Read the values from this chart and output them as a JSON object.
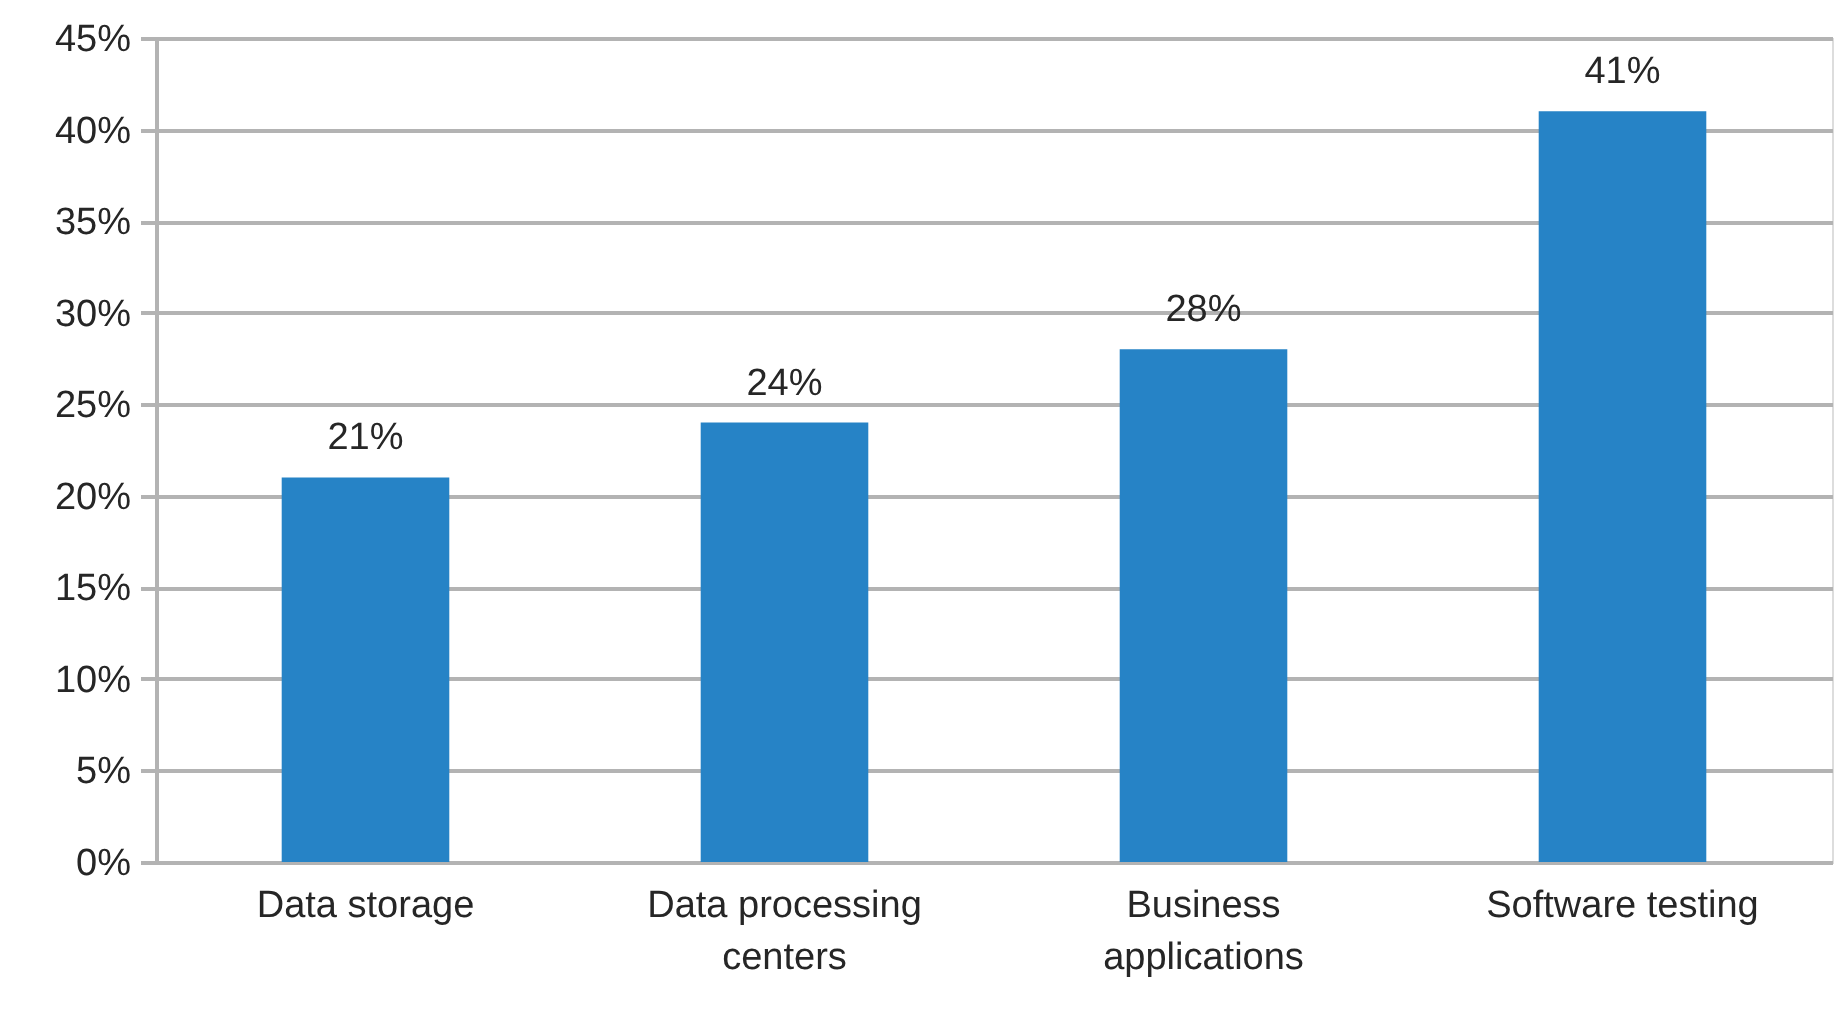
{
  "chart_data": {
    "type": "bar",
    "categories": [
      "Data storage",
      "Data processing centers",
      "Business applications",
      "Software testing"
    ],
    "values": [
      21,
      24,
      28,
      41
    ],
    "color": "#2683c6",
    "value_labels": [
      "21%",
      "24%",
      "28%",
      "41%"
    ],
    "ylim": [
      0,
      45
    ],
    "yticks": [
      {
        "value": 0,
        "label": "0%"
      },
      {
        "value": 5,
        "label": "5%"
      },
      {
        "value": 10,
        "label": "10%"
      },
      {
        "value": 15,
        "label": "15%"
      },
      {
        "value": 20,
        "label": "20%"
      },
      {
        "value": 25,
        "label": "25%"
      },
      {
        "value": 30,
        "label": "30%"
      },
      {
        "value": 35,
        "label": "35%"
      },
      {
        "value": 40,
        "label": "40%"
      },
      {
        "value": 45,
        "label": "45%"
      }
    ],
    "grid": "y"
  }
}
